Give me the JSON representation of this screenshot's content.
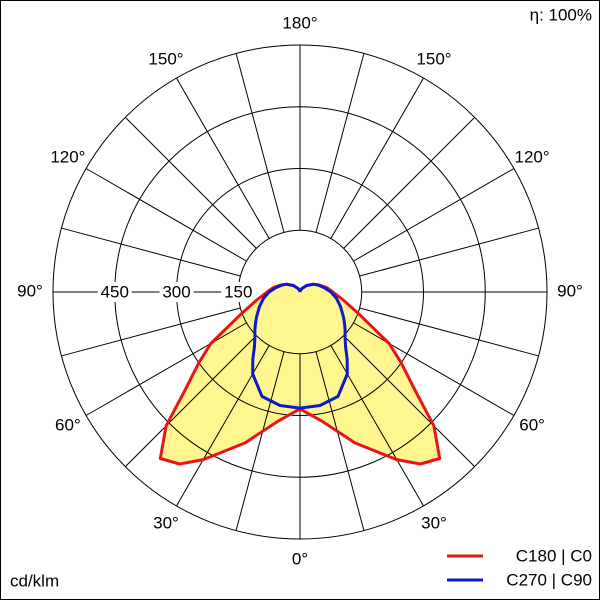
{
  "chart_data": {
    "type": "polar",
    "efficiency_label": "η: 100%",
    "unit_label": "cd/klm",
    "angles": [
      0,
      10,
      20,
      30,
      35,
      40,
      45,
      50,
      55,
      60,
      70,
      80,
      90,
      100,
      110,
      120,
      135,
      150,
      165,
      180
    ],
    "series": [
      {
        "name": "C180 | C0",
        "color": "#e8141b",
        "fill": "#fff68f",
        "values": [
          284,
          320,
          390,
          470,
          510,
          528,
          460,
          360,
          300,
          250,
          150,
          105,
          80,
          65,
          50,
          38,
          22,
          10,
          4,
          0
        ]
      },
      {
        "name": "C270 | C90",
        "color": "#0b1bc8",
        "values": [
          282,
          280,
          270,
          230,
          200,
          172,
          155,
          143,
          132,
          122,
          105,
          90,
          75,
          60,
          48,
          38,
          22,
          10,
          4,
          0
        ]
      }
    ],
    "rlim": [
      0,
      600
    ],
    "rticks": [
      150,
      300,
      450
    ],
    "angle_gridlines": [
      0,
      15,
      30,
      45,
      60,
      75,
      90,
      105,
      120,
      135,
      150,
      165,
      180
    ],
    "angle_ticks": [
      {
        "value": 0,
        "label": "0°"
      },
      {
        "value": 30,
        "label": "30°"
      },
      {
        "value": 60,
        "label": "60°"
      },
      {
        "value": 90,
        "label": "90°"
      },
      {
        "value": 120,
        "label": "120°"
      },
      {
        "value": 150,
        "label": "150°"
      },
      {
        "value": 180,
        "label": "180°"
      }
    ]
  }
}
